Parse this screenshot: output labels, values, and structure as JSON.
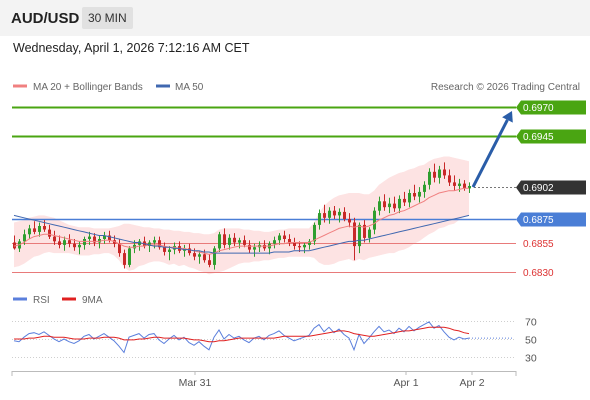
{
  "header": {
    "pair": "AUD/USD",
    "timeframe": "30 MIN",
    "datetime": "Wednesday, April 1, 2026 7:12:16 AM CET"
  },
  "legend": {
    "ma20_label": "MA 20 + Bollinger Bands",
    "ma50_label": "MA 50",
    "credit": "Research © 2026 Trading Central",
    "rsi_label": "RSI",
    "rsi_ma_label": "9MA"
  },
  "colors": {
    "resistance": "#4aa512",
    "pivot": "#4a7ed6",
    "support": "#e87a7a",
    "ma20": "#f08080",
    "ma50": "#4068b0",
    "band_fill": "#fde3e3",
    "candle_up": "#2f9e2f",
    "candle_down": "#c82828",
    "forecast_arrow": "#2a5da8",
    "current_tag": "#333333",
    "rsi": "#5b7fdc",
    "rsi_ma": "#e02020"
  },
  "chart_data": [
    {
      "type": "candlestick",
      "title": "AUD/USD",
      "x_labels": [
        "Mar 31",
        "Apr 1",
        "Apr 2"
      ],
      "ylim": [
        0.6815,
        0.6985
      ],
      "levels": [
        {
          "label": "0.6970",
          "value": 0.697,
          "kind": "resistance"
        },
        {
          "label": "0.6945",
          "value": 0.6945,
          "kind": "resistance"
        },
        {
          "label": "0.6902",
          "value": 0.6902,
          "kind": "current"
        },
        {
          "label": "0.6875",
          "value": 0.6875,
          "kind": "pivot"
        },
        {
          "label": "0.6855",
          "value": 0.6855,
          "kind": "support"
        },
        {
          "label": "0.6830",
          "value": 0.683,
          "kind": "support"
        }
      ],
      "candles": [
        [
          0.6855,
          0.6861,
          0.6849,
          0.685
        ],
        [
          0.685,
          0.6858,
          0.6847,
          0.6856
        ],
        [
          0.6856,
          0.6866,
          0.6853,
          0.6862
        ],
        [
          0.6862,
          0.687,
          0.6858,
          0.6867
        ],
        [
          0.6867,
          0.6873,
          0.6862,
          0.6864
        ],
        [
          0.6864,
          0.6872,
          0.686,
          0.6869
        ],
        [
          0.6869,
          0.6874,
          0.6864,
          0.6866
        ],
        [
          0.6866,
          0.687,
          0.6858,
          0.686
        ],
        [
          0.686,
          0.6865,
          0.6853,
          0.6856
        ],
        [
          0.6856,
          0.6861,
          0.685,
          0.6853
        ],
        [
          0.6853,
          0.686,
          0.6848,
          0.6857
        ],
        [
          0.6857,
          0.6862,
          0.6851,
          0.6854
        ],
        [
          0.6854,
          0.6858,
          0.6848,
          0.6851
        ],
        [
          0.6851,
          0.6856,
          0.6845,
          0.6853
        ],
        [
          0.6853,
          0.686,
          0.6849,
          0.6858
        ],
        [
          0.6858,
          0.6864,
          0.6853,
          0.686
        ],
        [
          0.686,
          0.6863,
          0.6852,
          0.6855
        ],
        [
          0.6855,
          0.6861,
          0.685,
          0.6858
        ],
        [
          0.6858,
          0.6864,
          0.6854,
          0.6861
        ],
        [
          0.6861,
          0.6865,
          0.6855,
          0.6857
        ],
        [
          0.6857,
          0.6861,
          0.6851,
          0.6854
        ],
        [
          0.6854,
          0.6858,
          0.6843,
          0.6846
        ],
        [
          0.6846,
          0.6849,
          0.6833,
          0.6836
        ],
        [
          0.6836,
          0.6852,
          0.6834,
          0.685
        ],
        [
          0.685,
          0.6857,
          0.6846,
          0.6853
        ],
        [
          0.6853,
          0.6858,
          0.6848,
          0.6856
        ],
        [
          0.6856,
          0.686,
          0.685,
          0.6852
        ],
        [
          0.6852,
          0.6857,
          0.6847,
          0.6855
        ],
        [
          0.6855,
          0.686,
          0.685,
          0.6857
        ],
        [
          0.6857,
          0.686,
          0.6849,
          0.6851
        ],
        [
          0.6851,
          0.6855,
          0.6844,
          0.6847
        ],
        [
          0.6847,
          0.6852,
          0.684,
          0.6849
        ],
        [
          0.6849,
          0.6855,
          0.6845,
          0.6852
        ],
        [
          0.6852,
          0.6856,
          0.6846,
          0.6848
        ],
        [
          0.6848,
          0.6853,
          0.6843,
          0.685
        ],
        [
          0.685,
          0.6854,
          0.6844,
          0.6846
        ],
        [
          0.6846,
          0.685,
          0.684,
          0.6843
        ],
        [
          0.6843,
          0.6848,
          0.6837,
          0.6845
        ],
        [
          0.6845,
          0.6849,
          0.6838,
          0.684
        ],
        [
          0.684,
          0.6845,
          0.6834,
          0.6836
        ],
        [
          0.6836,
          0.6852,
          0.6832,
          0.685
        ],
        [
          0.685,
          0.6864,
          0.6847,
          0.6862
        ],
        [
          0.6862,
          0.6867,
          0.685,
          0.6853
        ],
        [
          0.6853,
          0.6862,
          0.6849,
          0.6859
        ],
        [
          0.6859,
          0.6863,
          0.6852,
          0.6855
        ],
        [
          0.6855,
          0.6859,
          0.685,
          0.6857
        ],
        [
          0.6857,
          0.6861,
          0.6851,
          0.6853
        ],
        [
          0.6853,
          0.6857,
          0.6846,
          0.6849
        ],
        [
          0.6849,
          0.6854,
          0.6843,
          0.6851
        ],
        [
          0.6851,
          0.6856,
          0.6847,
          0.6853
        ],
        [
          0.6853,
          0.6857,
          0.6848,
          0.685
        ],
        [
          0.685,
          0.6856,
          0.6845,
          0.6854
        ],
        [
          0.6854,
          0.686,
          0.685,
          0.6857
        ],
        [
          0.6857,
          0.6863,
          0.6853,
          0.6861
        ],
        [
          0.6861,
          0.6865,
          0.6855,
          0.6858
        ],
        [
          0.6858,
          0.6862,
          0.6852,
          0.6855
        ],
        [
          0.6855,
          0.6859,
          0.6849,
          0.6852
        ],
        [
          0.6852,
          0.6856,
          0.6847,
          0.6851
        ],
        [
          0.6851,
          0.6855,
          0.6846,
          0.6853
        ],
        [
          0.6853,
          0.6858,
          0.6849,
          0.6856
        ],
        [
          0.6856,
          0.6872,
          0.6853,
          0.687
        ],
        [
          0.687,
          0.6883,
          0.6866,
          0.688
        ],
        [
          0.688,
          0.6887,
          0.6872,
          0.6876
        ],
        [
          0.6876,
          0.6885,
          0.6871,
          0.6882
        ],
        [
          0.6882,
          0.6886,
          0.6875,
          0.6878
        ],
        [
          0.6878,
          0.6884,
          0.6872,
          0.6881
        ],
        [
          0.6881,
          0.6885,
          0.6873,
          0.6875
        ],
        [
          0.6875,
          0.688,
          0.6868,
          0.6872
        ],
        [
          0.6872,
          0.6876,
          0.684,
          0.6852
        ],
        [
          0.6852,
          0.6872,
          0.6846,
          0.687
        ],
        [
          0.687,
          0.6874,
          0.6855,
          0.6859
        ],
        [
          0.6859,
          0.6868,
          0.6855,
          0.6866
        ],
        [
          0.6866,
          0.6885,
          0.6862,
          0.6882
        ],
        [
          0.6882,
          0.6894,
          0.6878,
          0.689
        ],
        [
          0.689,
          0.6896,
          0.6882,
          0.6885
        ],
        [
          0.6885,
          0.6893,
          0.688,
          0.6888
        ],
        [
          0.6888,
          0.6894,
          0.6881,
          0.6884
        ],
        [
          0.6884,
          0.6895,
          0.688,
          0.6892
        ],
        [
          0.6892,
          0.6898,
          0.6886,
          0.6889
        ],
        [
          0.6889,
          0.69,
          0.6885,
          0.6897
        ],
        [
          0.6897,
          0.6904,
          0.6891,
          0.6894
        ],
        [
          0.6894,
          0.6902,
          0.6889,
          0.6898
        ],
        [
          0.6898,
          0.6907,
          0.6893,
          0.6904
        ],
        [
          0.6904,
          0.6918,
          0.69,
          0.6915
        ],
        [
          0.6915,
          0.6922,
          0.6906,
          0.691
        ],
        [
          0.691,
          0.692,
          0.6905,
          0.6917
        ],
        [
          0.6917,
          0.6923,
          0.6909,
          0.6912
        ],
        [
          0.6912,
          0.6917,
          0.6903,
          0.6906
        ],
        [
          0.6906,
          0.6912,
          0.6899,
          0.6903
        ],
        [
          0.6903,
          0.6909,
          0.6898,
          0.6905
        ],
        [
          0.6905,
          0.6908,
          0.6899,
          0.6901
        ],
        [
          0.6901,
          0.6906,
          0.6897,
          0.6903
        ]
      ],
      "ma20": [
        0.6852,
        0.6853,
        0.6855,
        0.6858,
        0.686,
        0.6861,
        0.6862,
        0.6862,
        0.6861,
        0.686,
        0.6859,
        0.6858,
        0.6857,
        0.6856,
        0.6856,
        0.6856,
        0.6856,
        0.6856,
        0.6857,
        0.6857,
        0.6856,
        0.6854,
        0.6852,
        0.6851,
        0.6851,
        0.6852,
        0.6852,
        0.6853,
        0.6853,
        0.6853,
        0.6852,
        0.6851,
        0.6851,
        0.685,
        0.685,
        0.6849,
        0.6848,
        0.6847,
        0.6846,
        0.6845,
        0.6846,
        0.6848,
        0.6849,
        0.685,
        0.6851,
        0.6852,
        0.6852,
        0.6852,
        0.6852,
        0.6852,
        0.6852,
        0.6852,
        0.6853,
        0.6854,
        0.6854,
        0.6855,
        0.6855,
        0.6855,
        0.6855,
        0.6855,
        0.6857,
        0.6859,
        0.6861,
        0.6863,
        0.6865,
        0.6867,
        0.6868,
        0.6869,
        0.6868,
        0.6869,
        0.6868,
        0.6869,
        0.6871,
        0.6874,
        0.6876,
        0.6878,
        0.6879,
        0.6881,
        0.6882,
        0.6884,
        0.6886,
        0.6888,
        0.689,
        0.6893,
        0.6895,
        0.6897,
        0.6898,
        0.6899,
        0.6899,
        0.69,
        0.6901,
        0.6901
      ],
      "bb_upper": [
        0.6872,
        0.6873,
        0.6874,
        0.6876,
        0.6877,
        0.6878,
        0.6878,
        0.6877,
        0.6876,
        0.6874,
        0.6872,
        0.687,
        0.6869,
        0.6868,
        0.6868,
        0.6868,
        0.6867,
        0.6867,
        0.6867,
        0.6867,
        0.6868,
        0.6869,
        0.6871,
        0.6871,
        0.687,
        0.6869,
        0.6868,
        0.6868,
        0.6867,
        0.6867,
        0.6866,
        0.6866,
        0.6865,
        0.6865,
        0.6864,
        0.6864,
        0.6863,
        0.6863,
        0.6862,
        0.6862,
        0.6863,
        0.6866,
        0.6867,
        0.6867,
        0.6867,
        0.6867,
        0.6866,
        0.6866,
        0.6865,
        0.6865,
        0.6864,
        0.6864,
        0.6865,
        0.6866,
        0.6866,
        0.6867,
        0.6867,
        0.6867,
        0.6867,
        0.6867,
        0.6872,
        0.688,
        0.6886,
        0.689,
        0.6893,
        0.6895,
        0.6896,
        0.6897,
        0.6897,
        0.6897,
        0.6896,
        0.6896,
        0.6899,
        0.6904,
        0.6907,
        0.691,
        0.6912,
        0.6914,
        0.6915,
        0.6917,
        0.6918,
        0.692,
        0.6921,
        0.6924,
        0.6926,
        0.6927,
        0.6928,
        0.6928,
        0.6927,
        0.6926,
        0.6925,
        0.6924
      ],
      "bb_lower": [
        0.6834,
        0.6835,
        0.6837,
        0.684,
        0.6843,
        0.6844,
        0.6846,
        0.6847,
        0.6846,
        0.6846,
        0.6846,
        0.6846,
        0.6845,
        0.6844,
        0.6844,
        0.6844,
        0.6845,
        0.6845,
        0.6846,
        0.6846,
        0.6844,
        0.684,
        0.6834,
        0.6831,
        0.6832,
        0.6835,
        0.6836,
        0.6838,
        0.6839,
        0.6839,
        0.6838,
        0.6836,
        0.6837,
        0.6835,
        0.6836,
        0.6834,
        0.6833,
        0.6831,
        0.683,
        0.6828,
        0.6829,
        0.683,
        0.6831,
        0.6833,
        0.6835,
        0.6837,
        0.6838,
        0.6838,
        0.6839,
        0.6839,
        0.684,
        0.684,
        0.6841,
        0.6842,
        0.6842,
        0.6843,
        0.6843,
        0.6843,
        0.6843,
        0.6843,
        0.6842,
        0.6838,
        0.6836,
        0.6836,
        0.6837,
        0.6839,
        0.684,
        0.6841,
        0.6839,
        0.6841,
        0.684,
        0.6842,
        0.6843,
        0.6844,
        0.6845,
        0.6846,
        0.6846,
        0.6848,
        0.6849,
        0.6851,
        0.6854,
        0.6856,
        0.6859,
        0.6862,
        0.6864,
        0.6867,
        0.6868,
        0.687,
        0.6871,
        0.6874,
        0.6877,
        0.6878
      ],
      "ma50": [
        0.6878,
        0.6877,
        0.6876,
        0.6875,
        0.6874,
        0.6873,
        0.6872,
        0.6871,
        0.687,
        0.6869,
        0.6868,
        0.6867,
        0.6866,
        0.6865,
        0.6864,
        0.6863,
        0.6862,
        0.6861,
        0.6861,
        0.686,
        0.6859,
        0.6858,
        0.6857,
        0.6856,
        0.6855,
        0.6855,
        0.6854,
        0.6853,
        0.6852,
        0.6852,
        0.6851,
        0.6851,
        0.685,
        0.685,
        0.6849,
        0.6849,
        0.6848,
        0.6848,
        0.6847,
        0.6847,
        0.6846,
        0.6846,
        0.6846,
        0.6846,
        0.6846,
        0.6846,
        0.6846,
        0.6846,
        0.6846,
        0.6846,
        0.6846,
        0.6846,
        0.6847,
        0.6847,
        0.6847,
        0.6847,
        0.6848,
        0.6848,
        0.6848,
        0.6848,
        0.6849,
        0.685,
        0.6851,
        0.6852,
        0.6853,
        0.6854,
        0.6855,
        0.6856,
        0.6856,
        0.6857,
        0.6857,
        0.6858,
        0.6859,
        0.686,
        0.6861,
        0.6862,
        0.6863,
        0.6864,
        0.6865,
        0.6866,
        0.6867,
        0.6868,
        0.6869,
        0.687,
        0.6871,
        0.6872,
        0.6873,
        0.6874,
        0.6875,
        0.6876,
        0.6877,
        0.6878
      ],
      "forecast": {
        "from": 0.6902,
        "to": 0.697
      }
    },
    {
      "type": "line",
      "title": "",
      "ylim": [
        20,
        80
      ],
      "y_ticks": [
        "70",
        "50",
        "30"
      ],
      "series": [
        {
          "name": "RSI",
          "values": [
            48,
            47,
            52,
            56,
            57,
            55,
            58,
            54,
            50,
            47,
            50,
            47,
            45,
            48,
            53,
            55,
            50,
            53,
            56,
            52,
            48,
            42,
            35,
            52,
            54,
            56,
            51,
            55,
            56,
            49,
            45,
            50,
            54,
            49,
            52,
            46,
            43,
            47,
            42,
            38,
            52,
            60,
            50,
            55,
            51,
            53,
            49,
            46,
            51,
            53,
            49,
            54,
            56,
            59,
            54,
            51,
            48,
            50,
            52,
            54,
            62,
            66,
            58,
            63,
            57,
            61,
            55,
            51,
            38,
            55,
            45,
            51,
            58,
            64,
            58,
            60,
            56,
            62,
            58,
            64,
            59,
            63,
            66,
            69,
            62,
            65,
            58,
            52,
            49,
            52,
            50,
            51
          ]
        },
        {
          "name": "9MA",
          "values": [
            50,
            50,
            50,
            51,
            51,
            52,
            53,
            53,
            52,
            52,
            52,
            51,
            50,
            50,
            50,
            51,
            51,
            51,
            52,
            52,
            52,
            51,
            49,
            49,
            49,
            50,
            50,
            51,
            52,
            52,
            51,
            51,
            51,
            51,
            51,
            50,
            49,
            49,
            48,
            47,
            47,
            48,
            48,
            49,
            50,
            51,
            51,
            51,
            51,
            51,
            51,
            51,
            51,
            52,
            53,
            53,
            53,
            53,
            53,
            53,
            54,
            55,
            56,
            57,
            58,
            59,
            59,
            58,
            56,
            55,
            54,
            53,
            53,
            54,
            55,
            56,
            57,
            58,
            59,
            59,
            60,
            61,
            62,
            63,
            63,
            63,
            63,
            62,
            60,
            59,
            57,
            56
          ]
        }
      ]
    }
  ]
}
